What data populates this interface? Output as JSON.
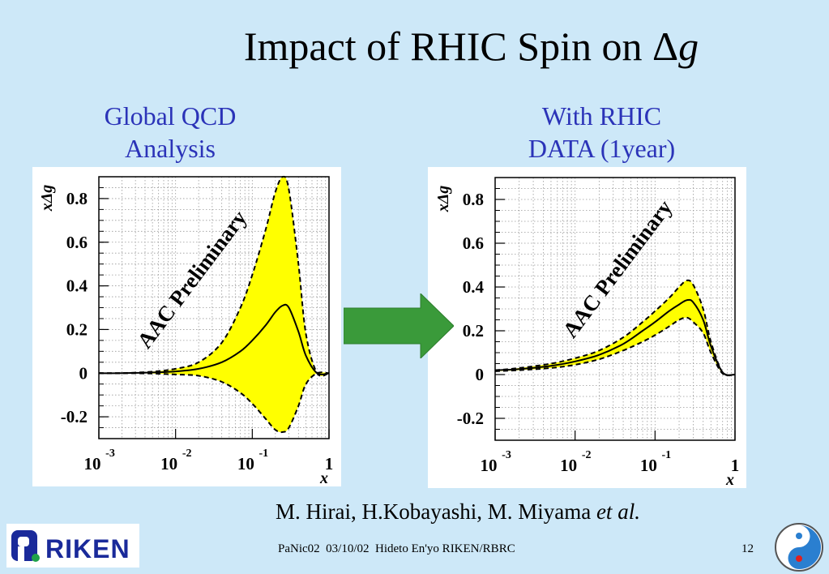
{
  "title": "Impact of RHIC Spin on Δ",
  "title_italic": "g",
  "left_caption_line1": "Global QCD",
  "left_caption_line2": "Analysis",
  "right_caption_line1": "With RHIC",
  "right_caption_line2": "DATA (1year)",
  "authors": "M. Hirai, H.Kobayashi, M. Miyama ",
  "authors_italic": "et al.",
  "footer": "PaNic02  03/10/02  Hideto En'yo RIKEN/RBRC",
  "page_number": "12",
  "logo_text": "RIKEN",
  "colors": {
    "background": "#cde8f8",
    "caption": "#2b33b8",
    "band": "#ffff00",
    "arrow": "#3a9a3a"
  },
  "chart_data": [
    {
      "type": "line",
      "annotation": "AAC Preliminary",
      "xlabel": "x",
      "ylabel": "xΔg",
      "xscale": "log",
      "xlim": [
        0.001,
        1
      ],
      "ylim": [
        -0.3,
        0.9
      ],
      "yticks": [
        "0.8",
        "0.6",
        "0.4",
        "0.2",
        "0",
        "-0.2"
      ],
      "ytick_values": [
        0.8,
        0.6,
        0.4,
        0.2,
        0,
        -0.2
      ],
      "xticks": [
        {
          "base": "10",
          "exp": "-3"
        },
        {
          "base": "10",
          "exp": "-2"
        },
        {
          "base": "10",
          "exp": "-1"
        },
        {
          "base": "1",
          "exp": ""
        }
      ],
      "xtick_values": [
        0.001,
        0.01,
        0.1,
        1
      ],
      "grid": true,
      "x": [
        0.001,
        0.002,
        0.005,
        0.01,
        0.02,
        0.04,
        0.07,
        0.1,
        0.15,
        0.2,
        0.25,
        0.3,
        0.4,
        0.5,
        0.7,
        1.0
      ],
      "series": [
        {
          "role": "central",
          "values": [
            0,
            0,
            0.003,
            0.008,
            0.02,
            0.05,
            0.1,
            0.15,
            0.22,
            0.28,
            0.31,
            0.3,
            0.19,
            0.08,
            0,
            0
          ]
        },
        {
          "role": "upper",
          "values": [
            0,
            0,
            0.007,
            0.02,
            0.05,
            0.14,
            0.3,
            0.45,
            0.66,
            0.83,
            0.9,
            0.84,
            0.5,
            0.18,
            0,
            0
          ]
        },
        {
          "role": "lower",
          "values": [
            0,
            0,
            -0.002,
            -0.006,
            -0.012,
            -0.04,
            -0.09,
            -0.14,
            -0.21,
            -0.26,
            -0.27,
            -0.25,
            -0.15,
            -0.05,
            0,
            0
          ]
        }
      ]
    },
    {
      "type": "line",
      "annotation": "AAC Preliminary",
      "xlabel": "x",
      "ylabel": "xΔg",
      "xscale": "log",
      "xlim": [
        0.001,
        1
      ],
      "ylim": [
        -0.3,
        0.9
      ],
      "yticks": [
        "0.8",
        "0.6",
        "0.4",
        "0.2",
        "0",
        "-0.2"
      ],
      "ytick_values": [
        0.8,
        0.6,
        0.4,
        0.2,
        0,
        -0.2
      ],
      "xticks": [
        {
          "base": "10",
          "exp": "-3"
        },
        {
          "base": "10",
          "exp": "-2"
        },
        {
          "base": "10",
          "exp": "-1"
        },
        {
          "base": "1",
          "exp": ""
        }
      ],
      "xtick_values": [
        0.001,
        0.01,
        0.1,
        1
      ],
      "grid": true,
      "x": [
        0.001,
        0.002,
        0.005,
        0.01,
        0.02,
        0.04,
        0.07,
        0.1,
        0.15,
        0.2,
        0.25,
        0.3,
        0.4,
        0.5,
        0.7,
        1.0
      ],
      "series": [
        {
          "role": "central",
          "values": [
            0.02,
            0.025,
            0.04,
            0.06,
            0.09,
            0.14,
            0.2,
            0.24,
            0.29,
            0.32,
            0.34,
            0.33,
            0.25,
            0.13,
            0.01,
            0
          ]
        },
        {
          "role": "upper",
          "values": [
            0.02,
            0.03,
            0.05,
            0.075,
            0.11,
            0.17,
            0.24,
            0.29,
            0.35,
            0.4,
            0.43,
            0.41,
            0.3,
            0.15,
            0.01,
            0
          ]
        },
        {
          "role": "lower",
          "values": [
            0.015,
            0.02,
            0.03,
            0.045,
            0.07,
            0.11,
            0.15,
            0.18,
            0.22,
            0.25,
            0.26,
            0.24,
            0.19,
            0.1,
            0.005,
            0
          ]
        }
      ]
    }
  ]
}
